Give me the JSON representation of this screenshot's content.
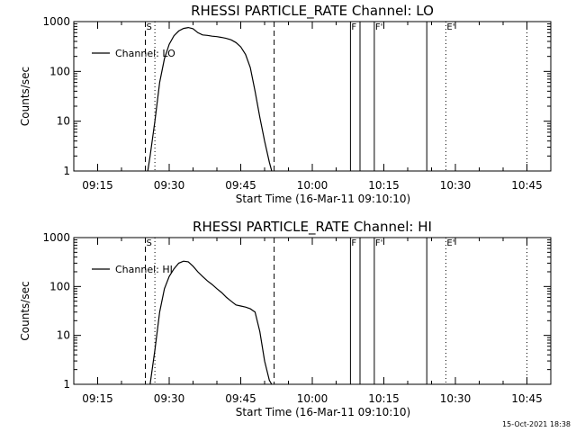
{
  "footer_timestamp": "15-Oct-2021 18:38",
  "colors": {
    "background": "#ffffff",
    "foreground": "#000000"
  },
  "chart_data": [
    {
      "type": "line",
      "title": "RHESSI PARTICLE_RATE Channel: LO",
      "xlabel": "Start Time (16-Mar-11 09:10:10)",
      "ylabel": "Counts/sec",
      "yscale": "log",
      "ylim": [
        1,
        1000
      ],
      "yticks": [
        1,
        10,
        100,
        1000
      ],
      "ytick_labels": [
        "1",
        "10",
        "100",
        "1000"
      ],
      "xlim": [
        "09:10",
        "10:50"
      ],
      "xticks": [
        "09:15",
        "09:30",
        "09:45",
        "10:00",
        "10:15",
        "10:30",
        "10:45"
      ],
      "legend": {
        "label": "Channel: LO",
        "position": "top-left"
      },
      "markers": [
        {
          "label": "S",
          "time": "09:25",
          "style": "dashed"
        },
        {
          "label": "",
          "time": "09:52",
          "style": "dashed"
        },
        {
          "label": "",
          "time": "09:27",
          "style": "dotted"
        },
        {
          "label": "F",
          "time": "10:08",
          "style": "solid"
        },
        {
          "label": "",
          "time": "10:10",
          "style": "solid"
        },
        {
          "label": "F'",
          "time": "10:13",
          "style": "solid"
        },
        {
          "label": "",
          "time": "10:24",
          "style": "solid"
        },
        {
          "label": "E'",
          "time": "10:28",
          "style": "dotted"
        },
        {
          "label": "",
          "time": "10:45",
          "style": "dotted"
        }
      ],
      "series": [
        {
          "name": "Channel: LO",
          "x": [
            "09:25.5",
            "09:26",
            "09:27",
            "09:28",
            "09:29",
            "09:30",
            "09:31",
            "09:32",
            "09:33",
            "09:34",
            "09:35",
            "09:36",
            "09:37",
            "09:38",
            "09:39",
            "09:40",
            "09:41",
            "09:42",
            "09:43",
            "09:44",
            "09:45",
            "09:46",
            "09:47",
            "09:48",
            "09:49",
            "09:50",
            "09:51",
            "09:51.5"
          ],
          "y": [
            1,
            2,
            10,
            60,
            180,
            350,
            520,
            650,
            730,
            760,
            720,
            600,
            540,
            530,
            510,
            500,
            480,
            460,
            430,
            380,
            310,
            220,
            120,
            40,
            12,
            4,
            1.5,
            1
          ]
        }
      ]
    },
    {
      "type": "line",
      "title": "RHESSI PARTICLE_RATE Channel: HI",
      "xlabel": "Start Time (16-Mar-11 09:10:10)",
      "ylabel": "Counts/sec",
      "yscale": "log",
      "ylim": [
        1,
        1000
      ],
      "yticks": [
        1,
        10,
        100,
        1000
      ],
      "ytick_labels": [
        "1",
        "10",
        "100",
        "1000"
      ],
      "xlim": [
        "09:10",
        "10:50"
      ],
      "xticks": [
        "09:15",
        "09:30",
        "09:45",
        "10:00",
        "10:15",
        "10:30",
        "10:45"
      ],
      "legend": {
        "label": "Channel: HI",
        "position": "top-left"
      },
      "markers": [
        {
          "label": "S",
          "time": "09:25",
          "style": "dashed"
        },
        {
          "label": "",
          "time": "09:52",
          "style": "dashed"
        },
        {
          "label": "",
          "time": "09:27",
          "style": "dotted"
        },
        {
          "label": "F",
          "time": "10:08",
          "style": "solid"
        },
        {
          "label": "",
          "time": "10:10",
          "style": "solid"
        },
        {
          "label": "F'",
          "time": "10:13",
          "style": "solid"
        },
        {
          "label": "",
          "time": "10:24",
          "style": "solid"
        },
        {
          "label": "E'",
          "time": "10:28",
          "style": "dotted"
        },
        {
          "label": "",
          "time": "10:45",
          "style": "dotted"
        }
      ],
      "series": [
        {
          "name": "Channel: HI",
          "x": [
            "09:26",
            "09:27",
            "09:28",
            "09:29",
            "09:30",
            "09:31",
            "09:32",
            "09:33",
            "09:34",
            "09:35",
            "09:36",
            "09:37",
            "09:38",
            "09:39",
            "09:40",
            "09:41",
            "09:42",
            "09:43",
            "09:44",
            "09:45",
            "09:46",
            "09:47",
            "09:48",
            "09:49",
            "09:50",
            "09:51",
            "09:51.5"
          ],
          "y": [
            1,
            5,
            30,
            90,
            160,
            230,
            300,
            330,
            320,
            260,
            200,
            160,
            130,
            110,
            90,
            75,
            60,
            50,
            42,
            40,
            38,
            35,
            30,
            12,
            3,
            1.2,
            1
          ]
        }
      ]
    }
  ]
}
